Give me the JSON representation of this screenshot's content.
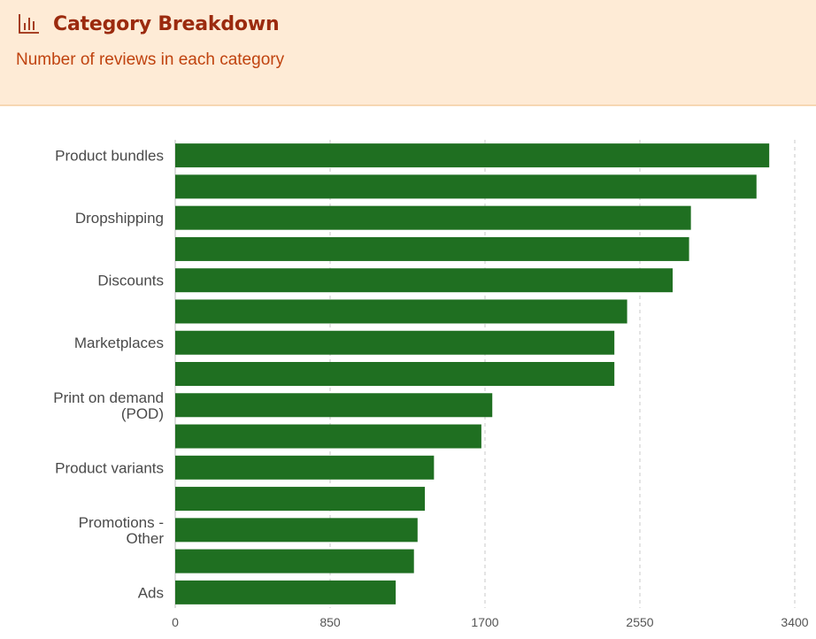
{
  "header": {
    "icon": "bar-chart-icon",
    "title": "Category Breakdown",
    "subtitle": "Number of reviews in each category"
  },
  "colors": {
    "bar": "#1f6f21",
    "header_bg": "#feebd6",
    "title": "#9b2a0e",
    "subtitle": "#c0430f"
  },
  "chart_data": {
    "type": "bar",
    "orientation": "horizontal",
    "title": "Category Breakdown",
    "subtitle": "Number of reviews in each category",
    "xlabel": "",
    "ylabel": "",
    "xlim": [
      0,
      3400
    ],
    "xticks": [
      "0",
      "850",
      "1700",
      "2550",
      "3400"
    ],
    "grid": true,
    "categories": [
      "Product bundles",
      "",
      "Dropshipping",
      "",
      "Discounts",
      "",
      "Marketplaces",
      "",
      "Print on demand (POD)",
      "",
      "Product variants",
      "",
      "Promotions - Other",
      "",
      "Ads"
    ],
    "category_label_lines": [
      [
        "Product bundles"
      ],
      [],
      [
        "Dropshipping"
      ],
      [],
      [
        "Discounts"
      ],
      [],
      [
        "Marketplaces"
      ],
      [],
      [
        "Print on demand",
        "(POD)"
      ],
      [],
      [
        "Product variants"
      ],
      [],
      [
        "Promotions -",
        "Other"
      ],
      [],
      [
        "Ads"
      ]
    ],
    "values": [
      3260,
      3190,
      2830,
      2820,
      2730,
      2480,
      2410,
      2410,
      1740,
      1680,
      1420,
      1370,
      1330,
      1310,
      1210
    ]
  }
}
